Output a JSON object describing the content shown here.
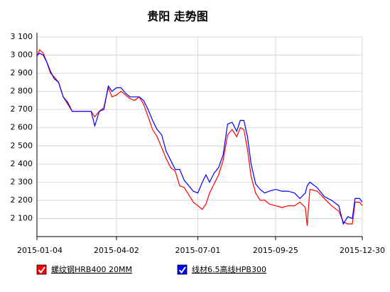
{
  "chart_data": {
    "type": "line",
    "title": "贵阳 走势图",
    "x": [
      "2015-01-04",
      "2015-01-07",
      "2015-01-11",
      "2015-01-15",
      "2015-01-19",
      "2015-01-23",
      "2015-01-28",
      "2015-02-02",
      "2015-02-07",
      "2015-02-12",
      "2015-02-25",
      "2015-03-05",
      "2015-03-09",
      "2015-03-14",
      "2015-03-19",
      "2015-03-24",
      "2015-03-28",
      "2015-04-02",
      "2015-04-07",
      "2015-04-12",
      "2015-04-17",
      "2015-04-22",
      "2015-04-27",
      "2015-05-02",
      "2015-05-07",
      "2015-05-12",
      "2015-05-17",
      "2015-05-22",
      "2015-05-27",
      "2015-06-01",
      "2015-06-06",
      "2015-06-11",
      "2015-06-16",
      "2015-06-21",
      "2015-06-26",
      "2015-07-01",
      "2015-07-06",
      "2015-07-10",
      "2015-07-14",
      "2015-07-19",
      "2015-07-24",
      "2015-07-29",
      "2015-08-03",
      "2015-08-08",
      "2015-08-13",
      "2015-08-17",
      "2015-08-21",
      "2015-08-25",
      "2015-08-29",
      "2015-09-03",
      "2015-09-08",
      "2015-09-13",
      "2015-09-18",
      "2015-09-25",
      "2015-10-02",
      "2015-10-09",
      "2015-10-16",
      "2015-10-22",
      "2015-10-28",
      "2015-10-30",
      "2015-11-02",
      "2015-11-10",
      "2015-11-18",
      "2015-11-26",
      "2015-12-04",
      "2015-12-09",
      "2015-12-14",
      "2015-12-19",
      "2015-12-22",
      "2015-12-27",
      "2015-12-30"
    ],
    "series": [
      {
        "name": "螺纹钢HRB400 20MM",
        "color": "#ff0000",
        "values": [
          2990,
          3030,
          3010,
          2960,
          2900,
          2880,
          2850,
          2770,
          2730,
          2690,
          2690,
          2690,
          2660,
          2690,
          2710,
          2820,
          2770,
          2780,
          2800,
          2780,
          2760,
          2750,
          2770,
          2730,
          2660,
          2590,
          2550,
          2490,
          2430,
          2380,
          2360,
          2280,
          2270,
          2230,
          2190,
          2170,
          2150,
          2180,
          2240,
          2290,
          2340,
          2420,
          2560,
          2590,
          2550,
          2600,
          2590,
          2480,
          2330,
          2240,
          2200,
          2200,
          2180,
          2170,
          2160,
          2170,
          2170,
          2190,
          2160,
          2060,
          2260,
          2250,
          2210,
          2170,
          2140,
          2080,
          2070,
          2070,
          2190,
          2190,
          2170
        ]
      },
      {
        "name": "线材6.5高线HPB300",
        "color": "#0000ff",
        "values": [
          3000,
          3010,
          3000,
          2960,
          2910,
          2870,
          2850,
          2770,
          2740,
          2690,
          2690,
          2690,
          2610,
          2690,
          2700,
          2830,
          2800,
          2820,
          2820,
          2790,
          2770,
          2770,
          2770,
          2750,
          2700,
          2640,
          2590,
          2560,
          2470,
          2420,
          2370,
          2370,
          2310,
          2280,
          2250,
          2240,
          2300,
          2340,
          2300,
          2350,
          2380,
          2450,
          2620,
          2630,
          2580,
          2640,
          2640,
          2550,
          2400,
          2290,
          2260,
          2240,
          2250,
          2260,
          2250,
          2250,
          2240,
          2210,
          2240,
          2280,
          2300,
          2270,
          2220,
          2200,
          2170,
          2070,
          2110,
          2100,
          2210,
          2210,
          2190
        ]
      }
    ],
    "xlim": [
      "2015-01-04",
      "2015-12-30"
    ],
    "xticks": [
      "2015-01-04",
      "2015-04-02",
      "2015-07-01",
      "2015-09-25",
      "2015-12-30"
    ],
    "ylim": [
      2000,
      3100
    ],
    "yticks": [
      {
        "value": 2100,
        "label": "2 100"
      },
      {
        "value": 2200,
        "label": "2 200"
      },
      {
        "value": 2300,
        "label": "2 300"
      },
      {
        "value": 2400,
        "label": "2 400"
      },
      {
        "value": 2500,
        "label": "2 500"
      },
      {
        "value": 2600,
        "label": "2 600"
      },
      {
        "value": 2700,
        "label": "2 700"
      },
      {
        "value": 2800,
        "label": "2 800"
      },
      {
        "value": 2900,
        "label": "2 900"
      },
      {
        "value": 3000,
        "label": "3 000"
      },
      {
        "value": 3100,
        "label": "3 100"
      }
    ],
    "grid": true,
    "legend": "bottom"
  }
}
